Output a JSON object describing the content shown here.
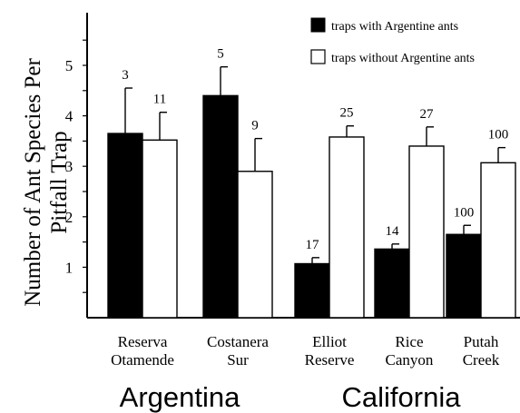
{
  "chart_data": {
    "type": "bar",
    "ylabel_lines": [
      "Number of Ant Species Per",
      "Pitfall Trap"
    ],
    "yticks": [
      "1",
      "2",
      "3",
      "4",
      "5"
    ],
    "ylim": [
      0,
      5.5
    ],
    "legend_position": "top-right",
    "series": [
      {
        "name": "traps with Argentine ants",
        "color": "#000000"
      },
      {
        "name": "traps without Argentine ants",
        "color": "#ffffff"
      }
    ],
    "sites": [
      {
        "label_lines": [
          "Reserva",
          "Otamende"
        ],
        "region": "Argentina",
        "with": {
          "value": 3.65,
          "err": 0.9,
          "n": "3"
        },
        "without": {
          "value": 3.52,
          "err": 0.55,
          "n": "11"
        }
      },
      {
        "label_lines": [
          "Costanera",
          "Sur"
        ],
        "region": "Argentina",
        "with": {
          "value": 4.4,
          "err": 0.57,
          "n": "5"
        },
        "without": {
          "value": 2.9,
          "err": 0.65,
          "n": "9"
        }
      },
      {
        "label_lines": [
          "Elliot",
          "Reserve"
        ],
        "region": "California",
        "with": {
          "value": 1.07,
          "err": 0.12,
          "n": "17"
        },
        "without": {
          "value": 3.58,
          "err": 0.22,
          "n": "25"
        }
      },
      {
        "label_lines": [
          "Rice",
          "Canyon"
        ],
        "region": "California",
        "with": {
          "value": 1.36,
          "err": 0.1,
          "n": "14"
        },
        "without": {
          "value": 3.4,
          "err": 0.38,
          "n": "27"
        }
      },
      {
        "label_lines": [
          "Putah",
          "Creek"
        ],
        "region": "California",
        "with": {
          "value": 1.65,
          "err": 0.18,
          "n": "100"
        },
        "without": {
          "value": 3.07,
          "err": 0.3,
          "n": "100"
        }
      }
    ],
    "regions": [
      "Argentina",
      "California"
    ]
  }
}
